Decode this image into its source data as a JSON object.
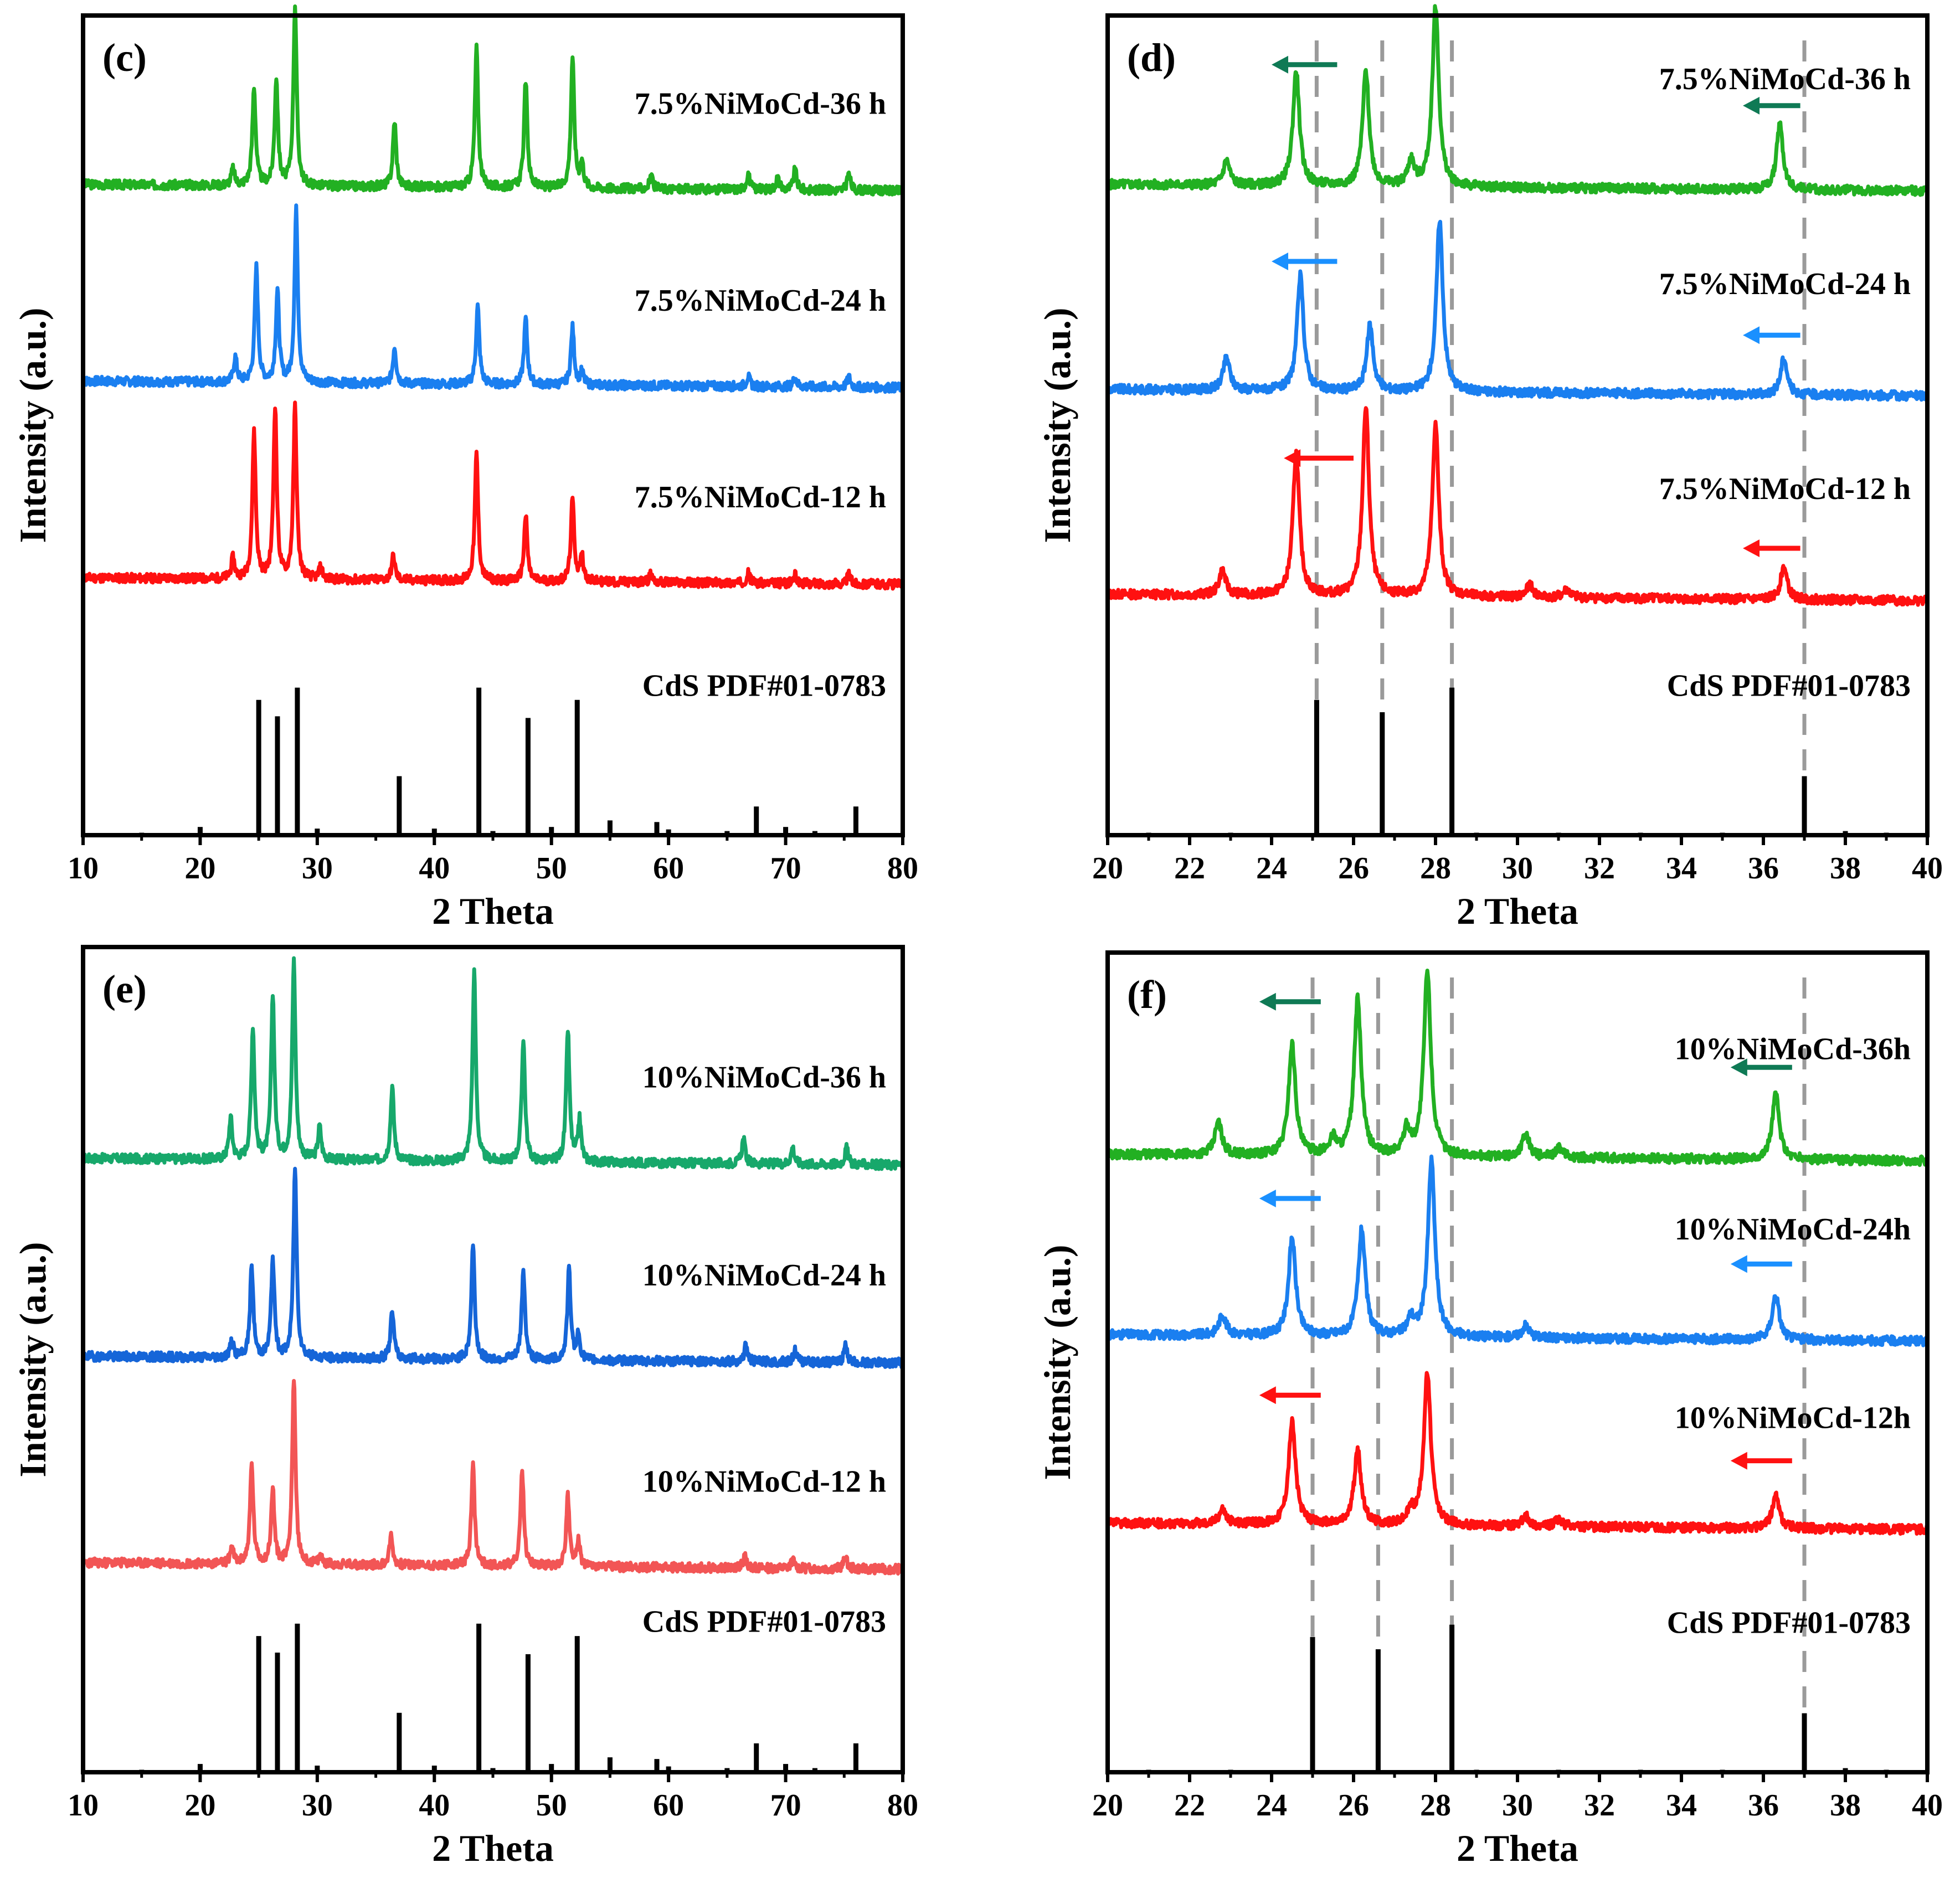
{
  "colors": {
    "green": "#22b022",
    "teal_green": "#17a86b",
    "blue": "#1a7ff0",
    "deep_blue": "#1565d8",
    "red": "#ff1111",
    "salmon": "#f25555",
    "reference": "#000000",
    "guide": "#9a9a9a",
    "arrow_green": "#0f7a55",
    "arrow_blue": "#1a90ff",
    "arrow_red": "#ff1111"
  },
  "chart_data": [
    {
      "type": "line",
      "panel_label": "(c)",
      "xlabel": "2 Theta",
      "ylabel": "Intensity (a.u.)",
      "xlim": [
        10,
        80
      ],
      "xticks": [
        "10",
        "20",
        "30",
        "40",
        "50",
        "60",
        "70",
        "80"
      ],
      "ylim": [
        0,
        100
      ],
      "series": [
        {
          "name": "7.5%NiMoCd-36 h",
          "color": "green",
          "baseline": 78,
          "noise_seed": 3,
          "peaks": [
            [
              22.8,
              2
            ],
            [
              24.6,
              12
            ],
            [
              26.5,
              13
            ],
            [
              28.1,
              22
            ],
            [
              36.6,
              8
            ],
            [
              43.6,
              17
            ],
            [
              47.8,
              13
            ],
            [
              51.8,
              16
            ],
            [
              52.6,
              3
            ],
            [
              58.5,
              1.5
            ],
            [
              66.8,
              2
            ],
            [
              69.3,
              1.5
            ],
            [
              70.8,
              2.5
            ],
            [
              75.4,
              2
            ]
          ]
        },
        {
          "name": "7.5%NiMoCd-24 h",
          "color": "blue",
          "baseline": 54,
          "noise_seed": 7,
          "peaks": [
            [
              23.0,
              3
            ],
            [
              24.8,
              14
            ],
            [
              26.6,
              11
            ],
            [
              28.2,
              21
            ],
            [
              36.6,
              4.5
            ],
            [
              43.7,
              9.5
            ],
            [
              47.8,
              8
            ],
            [
              51.8,
              7
            ],
            [
              52.6,
              1.5
            ],
            [
              66.8,
              1.2
            ],
            [
              70.8,
              1.2
            ],
            [
              75.4,
              1.2
            ]
          ]
        },
        {
          "name": "7.5%NiMoCd-12 h",
          "color": "red",
          "baseline": 30,
          "noise_seed": 11,
          "peaks": [
            [
              22.8,
              2.5
            ],
            [
              24.6,
              18
            ],
            [
              26.4,
              21
            ],
            [
              28.1,
              21
            ],
            [
              30.3,
              1.5
            ],
            [
              36.5,
              3
            ],
            [
              43.6,
              15.5
            ],
            [
              47.8,
              8
            ],
            [
              51.8,
              10
            ],
            [
              52.6,
              3
            ],
            [
              58.5,
              1
            ],
            [
              66.8,
              1.2
            ],
            [
              70.8,
              1
            ],
            [
              75.4,
              1.2
            ]
          ]
        }
      ],
      "reference": {
        "name": "CdS PDF#01-0783",
        "lines": [
          [
            15.0,
            0.3
          ],
          [
            20.0,
            1
          ],
          [
            25.0,
            16.5
          ],
          [
            26.6,
            14.5
          ],
          [
            28.3,
            18
          ],
          [
            30.0,
            0.8
          ],
          [
            37.0,
            7.2
          ],
          [
            40.0,
            0.8
          ],
          [
            43.8,
            18
          ],
          [
            45.0,
            0.5
          ],
          [
            48.0,
            14.3
          ],
          [
            50.0,
            1
          ],
          [
            52.2,
            16.5
          ],
          [
            55.0,
            1.8
          ],
          [
            59.0,
            1.6
          ],
          [
            60.0,
            0.7
          ],
          [
            65.0,
            0.5
          ],
          [
            67.5,
            3.5
          ],
          [
            70.0,
            1
          ],
          [
            72.5,
            0.5
          ],
          [
            76.0,
            3.5
          ]
        ]
      }
    },
    {
      "type": "line",
      "panel_label": "(d)",
      "xlabel": "2 Theta",
      "ylabel": "Intensity (a.u.)",
      "xlim": [
        20,
        40
      ],
      "xticks": [
        "20",
        "22",
        "24",
        "26",
        "28",
        "30",
        "32",
        "34",
        "36",
        "38",
        "40"
      ],
      "ylim": [
        0,
        100
      ],
      "series": [
        {
          "name": "7.5%NiMoCd-36 h",
          "color": "green",
          "baseline": 78,
          "noise_seed": 5,
          "width": 0.12,
          "peaks": [
            [
              22.9,
              3
            ],
            [
              24.6,
              14
            ],
            [
              26.3,
              14
            ],
            [
              27.4,
              3
            ],
            [
              28.0,
              22
            ],
            [
              36.4,
              8
            ]
          ]
        },
        {
          "name": "7.5%NiMoCd-24 h",
          "color": "blue",
          "baseline": 53,
          "noise_seed": 9,
          "width": 0.12,
          "peaks": [
            [
              22.9,
              4
            ],
            [
              24.7,
              14
            ],
            [
              26.4,
              8
            ],
            [
              28.1,
              21
            ],
            [
              36.5,
              4.5
            ]
          ]
        },
        {
          "name": "7.5%NiMoCd-12 h",
          "color": "red",
          "baseline": 28,
          "noise_seed": 13,
          "width": 0.12,
          "peaks": [
            [
              22.8,
              3
            ],
            [
              24.6,
              17.5
            ],
            [
              26.3,
              23
            ],
            [
              28.0,
              21
            ],
            [
              30.3,
              1.5
            ],
            [
              31.2,
              1
            ],
            [
              36.5,
              4
            ]
          ]
        }
      ],
      "reference": {
        "name": "CdS PDF#01-0783",
        "lines": [
          [
            21.0,
            0.3
          ],
          [
            23.0,
            0.3
          ],
          [
            25.1,
            16.5
          ],
          [
            26.7,
            15
          ],
          [
            28.4,
            18
          ],
          [
            29.0,
            0.3
          ],
          [
            31.0,
            0.3
          ],
          [
            33.0,
            0.3
          ],
          [
            35.0,
            0.3
          ],
          [
            37.0,
            7.2
          ],
          [
            38.0,
            0.5
          ],
          [
            39.0,
            0.3
          ]
        ]
      },
      "guides": [
        25.1,
        26.7,
        28.4,
        37.0
      ],
      "arrows": [
        {
          "color": "arrow_green",
          "x_from": 25.6,
          "x_to": 24.0,
          "y": 94
        },
        {
          "color": "arrow_green",
          "x_from": 36.9,
          "x_to": 35.5,
          "y": 89
        },
        {
          "color": "arrow_blue",
          "x_from": 25.6,
          "x_to": 24.0,
          "y": 70
        },
        {
          "color": "arrow_blue",
          "x_from": 36.9,
          "x_to": 35.5,
          "y": 61
        },
        {
          "color": "arrow_red",
          "x_from": 26.0,
          "x_to": 24.3,
          "y": 46
        },
        {
          "color": "arrow_red",
          "x_from": 36.9,
          "x_to": 35.5,
          "y": 35
        }
      ]
    },
    {
      "type": "line",
      "panel_label": "(e)",
      "xlabel": "2 Theta",
      "ylabel": "Intensity (a.u.)",
      "xlim": [
        10,
        80
      ],
      "xticks": [
        "10",
        "20",
        "30",
        "40",
        "50",
        "60",
        "70",
        "80"
      ],
      "ylim": [
        0,
        100
      ],
      "series": [
        {
          "name": "10%NiMoCd-36 h",
          "color": "teal_green",
          "baseline": 73,
          "noise_seed": 17,
          "peaks": [
            [
              22.6,
              5
            ],
            [
              24.5,
              16
            ],
            [
              26.2,
              20
            ],
            [
              28.0,
              24
            ],
            [
              30.2,
              4
            ],
            [
              36.4,
              9
            ],
            [
              43.4,
              23
            ],
            [
              47.6,
              15
            ],
            [
              51.4,
              16
            ],
            [
              52.4,
              5
            ],
            [
              66.4,
              3
            ],
            [
              70.6,
              2
            ],
            [
              75.2,
              2
            ]
          ]
        },
        {
          "name": "10%NiMoCd-24 h",
          "color": "deep_blue",
          "baseline": 49,
          "noise_seed": 19,
          "peaks": [
            [
              22.7,
              2
            ],
            [
              24.4,
              11
            ],
            [
              26.2,
              12
            ],
            [
              28.1,
              23
            ],
            [
              36.4,
              6
            ],
            [
              43.3,
              14
            ],
            [
              47.6,
              11
            ],
            [
              51.5,
              11
            ],
            [
              52.3,
              3
            ],
            [
              66.6,
              2
            ],
            [
              70.8,
              1.5
            ],
            [
              75.1,
              2
            ]
          ]
        },
        {
          "name": "10%NiMoCd-12 h",
          "color": "salmon",
          "baseline": 24,
          "noise_seed": 23,
          "peaks": [
            [
              22.7,
              2
            ],
            [
              24.4,
              12
            ],
            [
              26.2,
              9
            ],
            [
              28.0,
              22.5
            ],
            [
              30.3,
              1
            ],
            [
              36.3,
              3.5
            ],
            [
              43.3,
              12
            ],
            [
              47.5,
              11.5
            ],
            [
              51.4,
              8.5
            ],
            [
              52.3,
              3
            ],
            [
              66.5,
              1.5
            ],
            [
              70.6,
              1
            ],
            [
              75.1,
              1.5
            ]
          ]
        }
      ],
      "reference": {
        "name": "CdS PDF#01-0783",
        "lines": [
          [
            15.0,
            0.3
          ],
          [
            20.0,
            1
          ],
          [
            25.0,
            16.5
          ],
          [
            26.6,
            14.5
          ],
          [
            28.3,
            18
          ],
          [
            30.0,
            0.8
          ],
          [
            37.0,
            7.2
          ],
          [
            40.0,
            0.8
          ],
          [
            43.8,
            18
          ],
          [
            45.0,
            0.5
          ],
          [
            48.0,
            14.3
          ],
          [
            50.0,
            1
          ],
          [
            52.2,
            16.5
          ],
          [
            55.0,
            1.8
          ],
          [
            59.0,
            1.6
          ],
          [
            60.0,
            0.7
          ],
          [
            65.0,
            0.5
          ],
          [
            67.5,
            3.5
          ],
          [
            70.0,
            1
          ],
          [
            72.5,
            0.5
          ],
          [
            76.0,
            3.5
          ]
        ]
      }
    },
    {
      "type": "line",
      "panel_label": "(f)",
      "xlabel": "2 Theta",
      "ylabel": "Intensity (a.u.)",
      "xlim": [
        20,
        40
      ],
      "xticks": [
        "20",
        "22",
        "24",
        "26",
        "28",
        "30",
        "32",
        "34",
        "36",
        "38",
        "40"
      ],
      "ylim": [
        0,
        100
      ],
      "series": [
        {
          "name": "10%NiMoCd-36h",
          "color": "green",
          "baseline": 74,
          "noise_seed": 29,
          "width": 0.13,
          "peaks": [
            [
              22.7,
              4
            ],
            [
              24.5,
              13.5
            ],
            [
              25.5,
              2
            ],
            [
              26.1,
              19
            ],
            [
              27.3,
              3
            ],
            [
              27.8,
              22.5
            ],
            [
              30.2,
              3
            ],
            [
              31.0,
              1.2
            ],
            [
              36.3,
              8
            ]
          ]
        },
        {
          "name": "10%NiMoCd-24h",
          "color": "blue",
          "baseline": 52,
          "noise_seed": 31,
          "width": 0.13,
          "peaks": [
            [
              22.8,
              2.5
            ],
            [
              24.5,
              12
            ],
            [
              26.2,
              13
            ],
            [
              27.4,
              2
            ],
            [
              27.9,
              21.5
            ],
            [
              30.2,
              1.5
            ],
            [
              36.3,
              5.5
            ]
          ]
        },
        {
          "name": "10%NiMoCd-12h",
          "color": "red",
          "baseline": 29,
          "noise_seed": 37,
          "width": 0.13,
          "peaks": [
            [
              22.8,
              1.8
            ],
            [
              24.5,
              12.5
            ],
            [
              26.1,
              9
            ],
            [
              27.4,
              1.5
            ],
            [
              27.8,
              18.5
            ],
            [
              30.2,
              1.2
            ],
            [
              31.0,
              0.8
            ],
            [
              36.3,
              4
            ]
          ]
        }
      ],
      "reference": {
        "name": "CdS PDF#01-0783",
        "lines": [
          [
            21.0,
            0.3
          ],
          [
            23.0,
            0.3
          ],
          [
            25.0,
            16.5
          ],
          [
            26.6,
            15
          ],
          [
            28.4,
            18
          ],
          [
            29.0,
            0.3
          ],
          [
            31.0,
            0.3
          ],
          [
            33.0,
            0.3
          ],
          [
            35.0,
            0.3
          ],
          [
            37.0,
            7.2
          ],
          [
            38.0,
            0.5
          ],
          [
            39.0,
            0.3
          ]
        ]
      },
      "guides": [
        25.0,
        26.6,
        28.4,
        37.0
      ],
      "arrows": [
        {
          "color": "arrow_green",
          "x_from": 25.2,
          "x_to": 23.7,
          "y": 94
        },
        {
          "color": "arrow_green",
          "x_from": 36.7,
          "x_to": 35.2,
          "y": 86
        },
        {
          "color": "arrow_blue",
          "x_from": 25.2,
          "x_to": 23.7,
          "y": 70
        },
        {
          "color": "arrow_blue",
          "x_from": 36.7,
          "x_to": 35.2,
          "y": 62
        },
        {
          "color": "arrow_red",
          "x_from": 25.2,
          "x_to": 23.7,
          "y": 46
        },
        {
          "color": "arrow_red",
          "x_from": 36.7,
          "x_to": 35.2,
          "y": 38
        }
      ]
    }
  ]
}
